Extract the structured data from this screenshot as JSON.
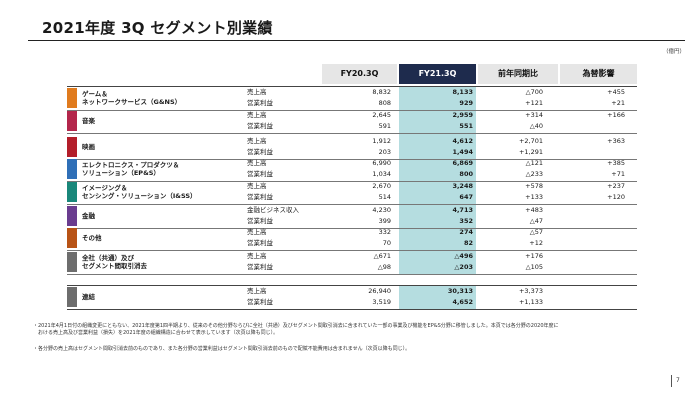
{
  "header": {
    "title": "2021年度 3Q セグメント別業績",
    "unit": "（億円）"
  },
  "columns": {
    "fy20": "FY20.3Q",
    "fy21": "FY21.3Q",
    "yoy": "前年同期比",
    "fx": "為替影響"
  },
  "segments": [
    {
      "name": [
        "ゲーム＆",
        "ネットワークサービス（G&NS）"
      ],
      "color": "#e07b1e",
      "rows": [
        {
          "metric": "売上高",
          "fy20": "8,832",
          "fy21": "8,133",
          "yoy": "△700",
          "fx": "+455"
        },
        {
          "metric": "営業利益",
          "fy20": "808",
          "fy21": "929",
          "yoy": "+121",
          "fx": "+21"
        }
      ]
    },
    {
      "name": [
        "音楽"
      ],
      "color": "#b3264b",
      "rows": [
        {
          "metric": "売上高",
          "fy20": "2,645",
          "fy21": "2,959",
          "yoy": "+314",
          "fx": "+166"
        },
        {
          "metric": "営業利益",
          "fy20": "591",
          "fy21": "551",
          "yoy": "△40",
          "fx": ""
        }
      ]
    },
    {
      "name": [
        "映画"
      ],
      "color": "#b31e2a",
      "rows": [
        {
          "metric": "売上高",
          "fy20": "1,912",
          "fy21": "4,612",
          "yoy": "+2,701",
          "fx": "+363"
        },
        {
          "metric": "営業利益",
          "fy20": "203",
          "fy21": "1,494",
          "yoy": "+1,291",
          "fx": ""
        }
      ]
    },
    {
      "name": [
        "エレクトロニクス・プロダクツ＆",
        "ソリューション（EP&S）"
      ],
      "color": "#2f6fb7",
      "rows": [
        {
          "metric": "売上高",
          "fy20": "6,990",
          "fy21": "6,869",
          "yoy": "△121",
          "fx": "+385"
        },
        {
          "metric": "営業利益",
          "fy20": "1,034",
          "fy21": "800",
          "yoy": "△233",
          "fx": "+71"
        }
      ]
    },
    {
      "name": [
        "イメージング＆",
        "センシング・ソリューション（I&SS）"
      ],
      "color": "#19877a",
      "rows": [
        {
          "metric": "売上高",
          "fy20": "2,670",
          "fy21": "3,248",
          "yoy": "+578",
          "fx": "+237"
        },
        {
          "metric": "営業利益",
          "fy20": "514",
          "fy21": "647",
          "yoy": "+133",
          "fx": "+120"
        }
      ]
    },
    {
      "name": [
        "金融"
      ],
      "color": "#6a3c8f",
      "rows": [
        {
          "metric": "金融ビジネス収入",
          "fy20": "4,230",
          "fy21": "4,713",
          "yoy": "+483",
          "fx": ""
        },
        {
          "metric": "営業利益",
          "fy20": "399",
          "fy21": "352",
          "yoy": "△47",
          "fx": ""
        }
      ]
    },
    {
      "name": [
        "その他"
      ],
      "color": "#b85316",
      "rows": [
        {
          "metric": "売上高",
          "fy20": "332",
          "fy21": "274",
          "yoy": "△57",
          "fx": ""
        },
        {
          "metric": "営業利益",
          "fy20": "70",
          "fy21": "82",
          "yoy": "+12",
          "fx": ""
        }
      ]
    },
    {
      "name": [
        "全社（共通）及び",
        "セグメント間取引消去"
      ],
      "color": "#6d6d6d",
      "rows": [
        {
          "metric": "売上高",
          "fy20": "△671",
          "fy21": "△496",
          "yoy": "+176",
          "fx": ""
        },
        {
          "metric": "営業利益",
          "fy20": "△98",
          "fy21": "△203",
          "yoy": "△105",
          "fx": ""
        }
      ]
    },
    {
      "name": [
        "連結"
      ],
      "color": "#6d6d6d",
      "rows": [
        {
          "metric": "売上高",
          "fy20": "26,940",
          "fy21": "30,313",
          "yoy": "+3,373",
          "fx": ""
        },
        {
          "metric": "営業利益",
          "fy20": "3,519",
          "fy21": "4,652",
          "yoy": "+1,133",
          "fx": ""
        }
      ]
    }
  ],
  "footnotes": [
    "・2021年4月1日付の組織変更にともない、2021年度第1四半期より、従来のその他分野ならびに全社（共通）及びセグメント間取引消去に含まれていた一部の事業及び機能をEP&S分野に移管しました。本頁では各分野の2020年度に",
    "　おける売上高及び営業利益（損失）を2021年度の組織構造に合わせて表示しています（次頁以降も同じ）。",
    "・各分野の売上高はセグメント間取引消去前のものであり、また各分野の営業利益はセグメント間取引消去前のもので配賦不能費用は含まれません（次頁以降も同じ）。"
  ],
  "page_number": "7"
}
